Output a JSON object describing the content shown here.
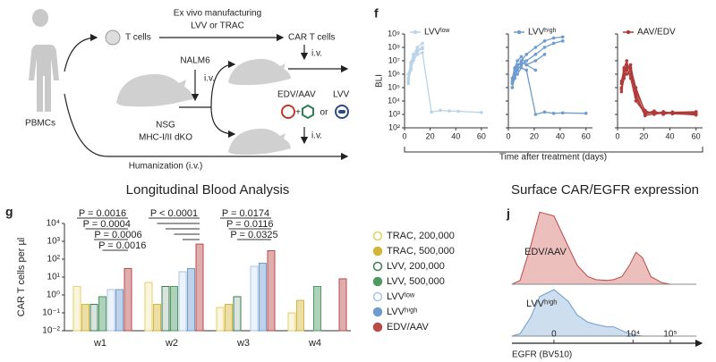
{
  "diagram": {
    "source": "PBMCs",
    "tcells": "T cells",
    "process": "Ex vivo manufacturing",
    "vector": "LVV or TRAC",
    "car": "CAR T cells",
    "tumor": "NALM6",
    "iv1": "i.v.",
    "mouse": "NSG",
    "mouse_sub": "MHC-I/II dKO",
    "iv2": "i.v.",
    "edv": "EDV/AAV",
    "lvv": "LVV",
    "plus": "+",
    "or": "or",
    "iv3": "i.v.",
    "humanization": "Humanization (i.v.)"
  },
  "panel_labels": [
    "f",
    "g",
    "j"
  ],
  "chart_data": [
    {
      "type": "line",
      "legend": "LVVˡᵒʷ",
      "color": "#b9d3e8",
      "ylabel": "BLI",
      "log_y": true,
      "ylim": [
        100,
        1000000000
      ],
      "yticks": [
        {
          "value": 100,
          "label": "10²"
        },
        {
          "value": 1000,
          "label": "10³"
        },
        {
          "value": 10000,
          "label": "10⁴"
        },
        {
          "value": 100000,
          "label": "10⁵"
        },
        {
          "value": 1000000,
          "label": "10⁶"
        },
        {
          "value": 10000000,
          "label": "10⁷"
        },
        {
          "value": 100000000,
          "label": "10⁸"
        },
        {
          "value": 1000000000,
          "label": "10⁹"
        }
      ],
      "xlim": [
        0,
        65
      ],
      "xticks": [
        0,
        20,
        40,
        60
      ],
      "x": [
        3,
        5,
        7,
        10,
        14,
        21,
        28,
        35,
        42,
        60
      ],
      "series": [
        {
          "values": [
            200000,
            3000000,
            10000000,
            30000000,
            40000000,
            1500,
            2000,
            1800,
            1700,
            1400
          ]
        },
        {
          "values": [
            500000,
            5000000,
            20000000,
            50000000,
            80000000,
            null,
            null,
            null,
            null,
            null
          ]
        },
        {
          "values": [
            1000000,
            8000000,
            30000000,
            100000000,
            200000000,
            null,
            null,
            null,
            null,
            null
          ]
        },
        {
          "values": [
            300000,
            2000000,
            15000000,
            60000000,
            100000000,
            null,
            null,
            null,
            null,
            null
          ]
        }
      ]
    },
    {
      "type": "line",
      "legend": "LVVʰⁱᵍʰ",
      "color": "#6f9ccf",
      "xlabel": "Time after treatment (days)",
      "log_y": true,
      "xlim": [
        0,
        65
      ],
      "xticks": [
        0,
        20,
        40,
        60
      ],
      "x": [
        3,
        5,
        7,
        10,
        14,
        21,
        28,
        35,
        42,
        60
      ],
      "series": [
        {
          "values": [
            200000,
            1000000,
            3000000,
            10000000,
            30000000,
            100000000,
            300000000,
            500000000,
            600000000,
            null
          ]
        },
        {
          "values": [
            100000,
            500000,
            2000000,
            5000000,
            10000000,
            30000000,
            100000000,
            200000000,
            300000000,
            null
          ]
        },
        {
          "values": [
            300000,
            2000000,
            5000000,
            8000000,
            5000000,
            10000000,
            30000000,
            null,
            null,
            null
          ]
        },
        {
          "values": [
            100000,
            800000,
            1000000,
            3000000,
            2000000,
            1000,
            1500,
            1200,
            1300,
            1200
          ]
        },
        {
          "values": [
            500000,
            3000000,
            10000000,
            20000000,
            5000000,
            2000000,
            null,
            null,
            null,
            null
          ]
        }
      ]
    },
    {
      "type": "line",
      "legend": "AAV/EDV",
      "color": "#b03a3a",
      "log_y": true,
      "xlim": [
        0,
        65
      ],
      "xticks": [
        0,
        20,
        40,
        60
      ],
      "x": [
        3,
        5,
        7,
        10,
        14,
        21,
        28,
        35,
        42,
        60
      ],
      "series": [
        {
          "values": [
            100000,
            1000000,
            5000000,
            3000000,
            100000,
            1500,
            1200,
            1500,
            1300,
            1200
          ]
        },
        {
          "values": [
            300000,
            3000000,
            10000000,
            1000000,
            30000,
            1000,
            1500,
            1200,
            1500,
            1400
          ]
        },
        {
          "values": [
            50000,
            500000,
            2000000,
            5000000,
            50000,
            2000,
            1000,
            1300,
            1100,
            1000
          ]
        },
        {
          "values": [
            200000,
            2000000,
            3000000,
            500000,
            10000,
            1200,
            1800,
            1000,
            1400,
            1600
          ]
        },
        {
          "values": [
            80000,
            800000,
            1000000,
            2000000,
            20000,
            800,
            1100,
            1600,
            1200,
            900
          ]
        }
      ]
    },
    {
      "type": "bar",
      "title": "Longitudinal Blood Analysis",
      "ylabel": "CAR T cells per µl",
      "log_y": true,
      "categories": [
        "w1",
        "w2",
        "w3",
        "w4"
      ],
      "ylim": [
        0.01,
        10000
      ],
      "yticks": [
        {
          "value": 0.01,
          "label": "10⁻²"
        },
        {
          "value": 0.1,
          "label": "10⁻¹"
        },
        {
          "value": 1,
          "label": "10⁰"
        },
        {
          "value": 10,
          "label": "10¹"
        },
        {
          "value": 100,
          "label": "10²"
        },
        {
          "value": 1000,
          "label": "10³"
        },
        {
          "value": 10000,
          "label": "10⁴"
        }
      ],
      "series": [
        {
          "name": "TRAC, 200,000",
          "color": "#e3cf62",
          "open": true,
          "values": [
            3,
            5,
            0.2,
            0.1
          ]
        },
        {
          "name": "TRAC, 500,000",
          "color": "#d2b53a",
          "open": false,
          "values": [
            0.3,
            0.3,
            0.3,
            0.5
          ]
        },
        {
          "name": "LVV, 200,000",
          "color": "#3f7a55",
          "open": true,
          "values": [
            0.3,
            3,
            0.8,
            null
          ]
        },
        {
          "name": "LVV, 500,000",
          "color": "#4f9a63",
          "open": false,
          "values": [
            0.8,
            3,
            null,
            3
          ]
        },
        {
          "name": "LVVˡᵒʷ",
          "color": "#a8c4e6",
          "open": true,
          "values": [
            2,
            20,
            40,
            null
          ]
        },
        {
          "name": "LVVʰⁱᵍʰ",
          "color": "#6f9ccf",
          "open": false,
          "values": [
            2,
            30,
            60,
            null
          ]
        },
        {
          "name": "EDV/AAV",
          "color": "#b94a48",
          "open": false,
          "values": [
            30,
            700,
            300,
            8
          ]
        }
      ],
      "annotations": [
        "P = 0.0016",
        "P = 0.0004",
        "P = 0.0006",
        "P = 0.0016",
        "P < 0.0001",
        "P = 0.0174",
        "P = 0.0116",
        "P = 0.0325"
      ]
    },
    {
      "type": "histogram_density",
      "title": "Surface CAR/EGFR expression",
      "xlabel": "EGFR (BV510)",
      "xscale": "biexponential",
      "xlim": [
        -1000,
        500000
      ],
      "xticks": [
        0,
        {
          "value": 10000,
          "label": "10⁴"
        },
        {
          "value": 100000,
          "label": "10⁵"
        }
      ],
      "x": [
        -1000,
        -600,
        -300,
        -150,
        0,
        150,
        300,
        600,
        1000,
        2000,
        3000,
        5000,
        8000,
        12000,
        18000,
        30000,
        60000,
        100000,
        200000,
        500000
      ],
      "series": [
        {
          "name": "EDV/AAV",
          "color": "#b94a48",
          "fill": "#e6a8a6",
          "values": [
            0,
            0.05,
            0.5,
            0.95,
            0.9,
            0.5,
            0.25,
            0.1,
            0.06,
            0.05,
            0.06,
            0.1,
            0.25,
            0.42,
            0.35,
            0.1,
            0.02,
            0,
            0,
            0
          ]
        },
        {
          "name": "LVVʰⁱᵍʰ",
          "color": "#6f9ccf",
          "fill": "#bcd3ea",
          "values": [
            0,
            0.05,
            0.4,
            0.85,
            1,
            0.75,
            0.45,
            0.3,
            0.25,
            0.2,
            0.2,
            0.12,
            0.05,
            0.02,
            0,
            0,
            0,
            0,
            0,
            0
          ]
        }
      ]
    }
  ]
}
